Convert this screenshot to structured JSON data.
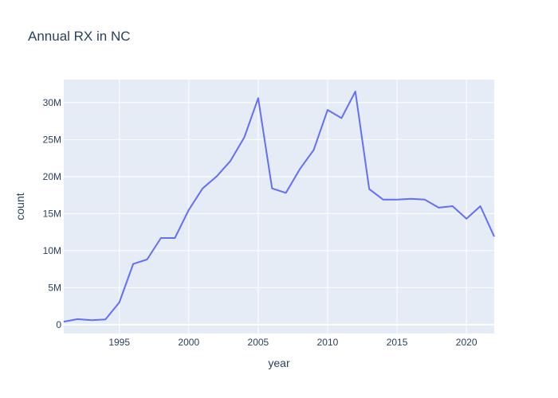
{
  "chart_data": {
    "type": "line",
    "title": "Annual RX in NC",
    "xlabel": "year",
    "ylabel": "count",
    "xlim": [
      1991,
      2022
    ],
    "ylim": [
      -1200000,
      33100000
    ],
    "grid": true,
    "legend": "none",
    "x_ticks": [
      1995,
      2000,
      2005,
      2010,
      2015,
      2020
    ],
    "y_ticks": [
      {
        "value": 0,
        "label": "0"
      },
      {
        "value": 5000000,
        "label": "5M"
      },
      {
        "value": 10000000,
        "label": "10M"
      },
      {
        "value": 15000000,
        "label": "15M"
      },
      {
        "value": 20000000,
        "label": "20M"
      },
      {
        "value": 25000000,
        "label": "25M"
      },
      {
        "value": 30000000,
        "label": "30M"
      }
    ],
    "series": [
      {
        "color": "#636efa",
        "x": [
          1991,
          1992,
          1993,
          1994,
          1995,
          1996,
          1997,
          1998,
          1999,
          2000,
          2001,
          2002,
          2003,
          2004,
          2005,
          2006,
          2007,
          2008,
          2009,
          2010,
          2011,
          2012,
          2013,
          2014,
          2015,
          2016,
          2017,
          2018,
          2019,
          2020,
          2021,
          2022
        ],
        "y": [
          400000,
          750000,
          600000,
          700000,
          3000000,
          8200000,
          8800000,
          11700000,
          11700000,
          15500000,
          18400000,
          20000000,
          22100000,
          25300000,
          30600000,
          18400000,
          17800000,
          21000000,
          23600000,
          29000000,
          27900000,
          31500000,
          18300000,
          16900000,
          16900000,
          17000000,
          16900000,
          15800000,
          16000000,
          14300000,
          16000000,
          11900000
        ]
      }
    ]
  }
}
